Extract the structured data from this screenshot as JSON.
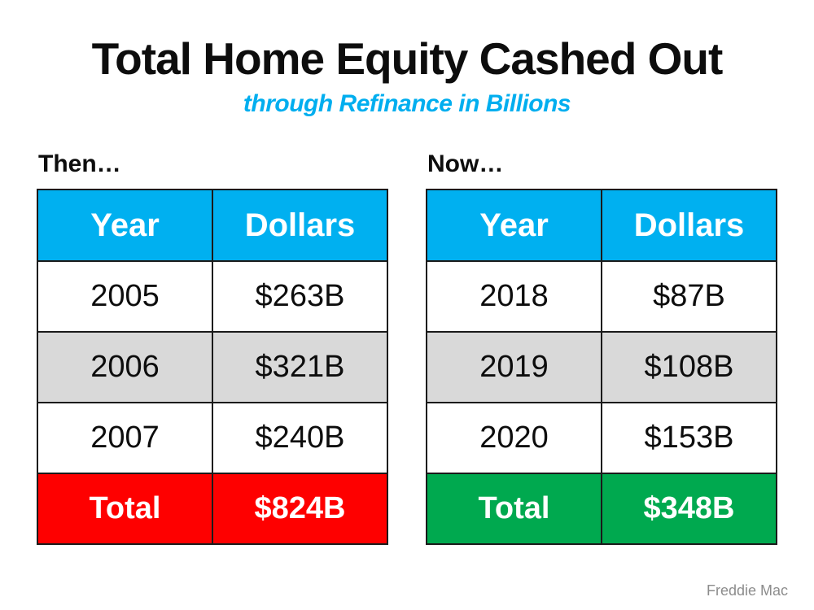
{
  "title": "Total Home Equity Cashed Out",
  "subtitle": "through Refinance in Billions",
  "attribution": "Freddie Mac",
  "colors": {
    "accent_blue_header": "#00b0f0",
    "subtitle_blue": "#00aeef",
    "row_alt_gray": "#d9d9d9",
    "total_red": "#fe0000",
    "total_green": "#00a94f",
    "border": "#1a1a1a"
  },
  "chart_data": [
    {
      "type": "table",
      "label": "Then…",
      "columns": [
        "Year",
        "Dollars"
      ],
      "rows": [
        [
          "2005",
          "$263B"
        ],
        [
          "2006",
          "$321B"
        ],
        [
          "2007",
          "$240B"
        ]
      ],
      "total_row": {
        "label": "Total",
        "value": "$824B"
      },
      "values_numeric_billions": [
        263,
        321,
        240
      ],
      "total_numeric_billions": 824,
      "total_color": "#fe0000"
    },
    {
      "type": "table",
      "label": "Now…",
      "columns": [
        "Year",
        "Dollars"
      ],
      "rows": [
        [
          "2018",
          "$87B"
        ],
        [
          "2019",
          "$108B"
        ],
        [
          "2020",
          "$153B"
        ]
      ],
      "total_row": {
        "label": "Total",
        "value": "$348B"
      },
      "values_numeric_billions": [
        87,
        108,
        153
      ],
      "total_numeric_billions": 348,
      "total_color": "#00a94f"
    }
  ]
}
